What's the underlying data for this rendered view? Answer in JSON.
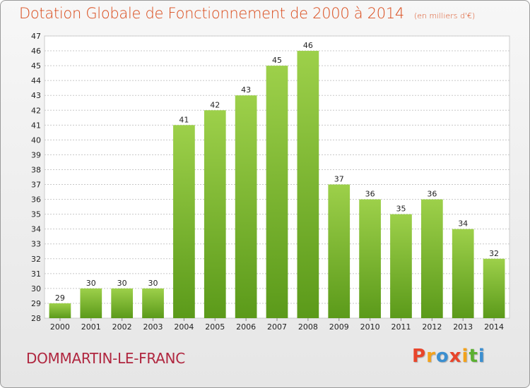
{
  "header": {
    "title": "Dotation Globale de Fonctionnement de 2000 à 2014",
    "unit": "(en milliers d'€)"
  },
  "footer": {
    "commune": "DOMMARTIN-LE-FRANC",
    "logo_letters": [
      "P",
      "r",
      "o",
      "x",
      "i",
      "t",
      "i"
    ],
    "logo_colors": [
      "#e8452b",
      "#f3a21c",
      "#3b8fd0",
      "#e8452b",
      "#f3a21c",
      "#5bb031",
      "#3b8fd0"
    ]
  },
  "chart_data": {
    "type": "bar",
    "categories": [
      "2000",
      "2001",
      "2002",
      "2003",
      "2004",
      "2005",
      "2006",
      "2007",
      "2008",
      "2009",
      "2010",
      "2011",
      "2012",
      "2013",
      "2014"
    ],
    "values": [
      29,
      30,
      30,
      30,
      41,
      42,
      43,
      45,
      46,
      37,
      36,
      35,
      36,
      34,
      32
    ],
    "ylim": [
      28,
      47
    ],
    "yticks": [
      28,
      29,
      30,
      31,
      32,
      33,
      34,
      35,
      36,
      37,
      38,
      39,
      40,
      41,
      42,
      43,
      44,
      45,
      46,
      47
    ],
    "grid": true,
    "bar_color_top": "#9dd04a",
    "bar_color_bottom": "#5b9a1a"
  }
}
